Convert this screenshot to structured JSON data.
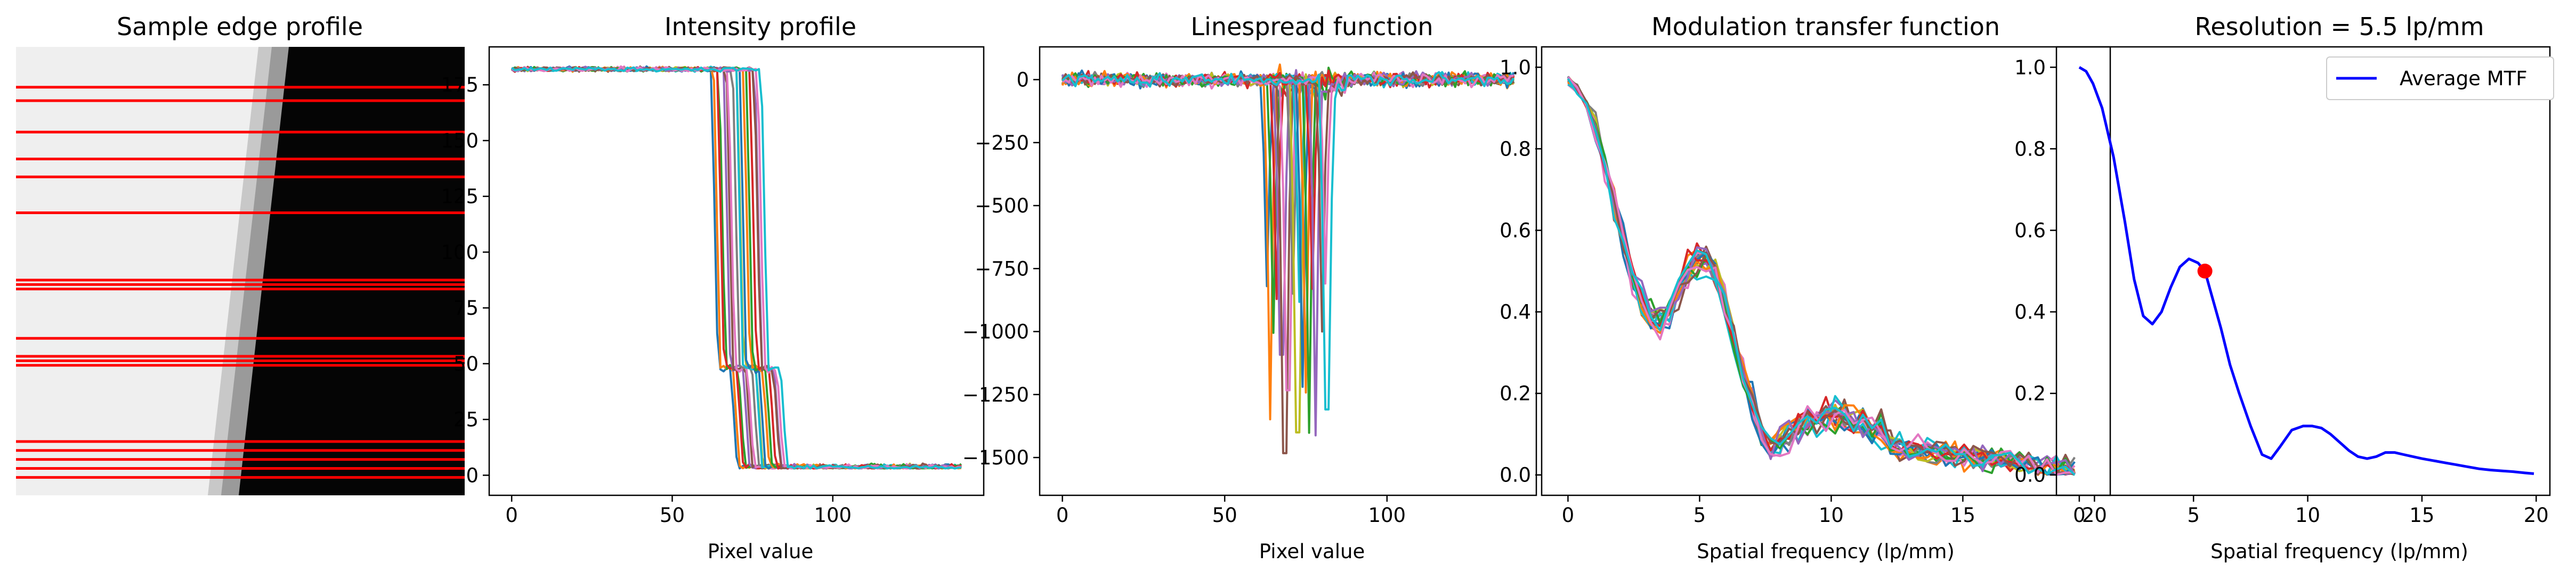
{
  "figure": {
    "panels": [
      {
        "title": "Sample edge profile"
      },
      {
        "title": "Intensity profile",
        "xlabel": "Pixel value"
      },
      {
        "title": "Linespread function",
        "xlabel": "Pixel value"
      },
      {
        "title": "Modulation transfer function",
        "xlabel": "Spatial frequency (lp/mm)"
      },
      {
        "title": "Resolution = 5.5 lp/mm",
        "xlabel": "Spatial frequency (lp/mm)",
        "legend": "Average MTF"
      }
    ]
  },
  "chart_data": [
    {
      "type": "image",
      "title": "Sample edge profile",
      "description_visible": "grayscale edge: light left region, dark right region, slanted transition; red horizontal sample lines",
      "sample_lines_fraction_from_top": [
        0.09,
        0.12,
        0.19,
        0.25,
        0.29,
        0.37,
        0.52,
        0.53,
        0.54,
        0.65,
        0.69,
        0.7,
        0.71,
        0.88,
        0.9,
        0.92,
        0.94,
        0.96
      ],
      "line_color": "#ff0000"
    },
    {
      "type": "line",
      "title": "Intensity profile",
      "xlabel": "Pixel value",
      "xlim": [
        -7,
        147
      ],
      "ylim": [
        -9,
        192
      ],
      "xticks": [
        0,
        50,
        100
      ],
      "yticks": [
        0,
        25,
        50,
        75,
        100,
        125,
        150,
        175
      ],
      "n_series": 18,
      "high_level": 182,
      "low_level": 3,
      "plateau_level": 48,
      "edge_x_range": [
        63,
        79
      ]
    },
    {
      "type": "line",
      "title": "Linespread function",
      "xlabel": "Pixel value",
      "xlim": [
        -7,
        146
      ],
      "ylim": [
        -1650,
        130
      ],
      "xticks": [
        0,
        50,
        100
      ],
      "yticks": [
        0,
        -250,
        -500,
        -750,
        -1000,
        -1250,
        -1500
      ],
      "n_series": 18,
      "trough_x_range": [
        63,
        82
      ],
      "trough_y_range": [
        -1560,
        -700
      ]
    },
    {
      "type": "line",
      "title": "Modulation transfer function",
      "xlabel": "Spatial frequency (lp/mm)",
      "xlim": [
        -1,
        20.6
      ],
      "ylim": [
        -0.05,
        1.05
      ],
      "xticks": [
        0,
        5,
        10,
        15,
        20
      ],
      "yticks": [
        0.0,
        0.2,
        0.4,
        0.6,
        0.8,
        1.0
      ],
      "n_series": 18,
      "mean_curve": {
        "x": [
          0,
          0.5,
          1,
          1.5,
          2,
          2.5,
          3,
          3.5,
          4,
          4.5,
          5,
          5.5,
          6,
          6.5,
          7,
          7.5,
          8,
          9,
          10,
          11,
          12,
          13,
          14,
          15,
          16,
          17,
          18,
          19,
          19.6
        ],
        "y": [
          0.97,
          0.94,
          0.86,
          0.74,
          0.6,
          0.47,
          0.39,
          0.38,
          0.42,
          0.5,
          0.54,
          0.51,
          0.41,
          0.28,
          0.17,
          0.07,
          0.05,
          0.1,
          0.12,
          0.1,
          0.08,
          0.06,
          0.06,
          0.05,
          0.04,
          0.03,
          0.02,
          0.01,
          0.005
        ]
      }
    },
    {
      "type": "line",
      "title": "Resolution = 5.5 lp/mm",
      "xlabel": "Spatial frequency (lp/mm)",
      "xlim": [
        -1,
        20.6
      ],
      "ylim": [
        -0.05,
        1.05
      ],
      "xticks": [
        0,
        5,
        10,
        15,
        20
      ],
      "yticks": [
        0.0,
        0.2,
        0.4,
        0.6,
        0.8,
        1.0
      ],
      "legend_position": "top-right",
      "series": [
        {
          "name": "Average MTF",
          "color": "#0000ff",
          "x": [
            0,
            0.3,
            0.6,
            1,
            1.5,
            2,
            2.4,
            2.8,
            3.2,
            3.6,
            4,
            4.4,
            4.8,
            5.2,
            5.5,
            5.8,
            6.2,
            6.6,
            7,
            7.5,
            8,
            8.4,
            8.8,
            9.3,
            9.8,
            10.2,
            10.6,
            11,
            11.4,
            11.8,
            12.2,
            12.6,
            13,
            13.4,
            13.8,
            14.2,
            14.6,
            15,
            15.5,
            16,
            16.5,
            17,
            17.5,
            18,
            18.5,
            19,
            19.5,
            19.9
          ],
          "y": [
            1.0,
            0.99,
            0.96,
            0.9,
            0.78,
            0.62,
            0.48,
            0.39,
            0.37,
            0.4,
            0.46,
            0.51,
            0.53,
            0.52,
            0.5,
            0.44,
            0.36,
            0.27,
            0.2,
            0.12,
            0.05,
            0.04,
            0.07,
            0.11,
            0.12,
            0.12,
            0.115,
            0.1,
            0.08,
            0.06,
            0.045,
            0.04,
            0.045,
            0.055,
            0.055,
            0.05,
            0.045,
            0.04,
            0.035,
            0.03,
            0.025,
            0.02,
            0.015,
            0.012,
            0.01,
            0.008,
            0.005,
            0.003
          ]
        }
      ],
      "marker": {
        "x": 5.5,
        "y": 0.5,
        "color": "#ff0000"
      }
    }
  ]
}
